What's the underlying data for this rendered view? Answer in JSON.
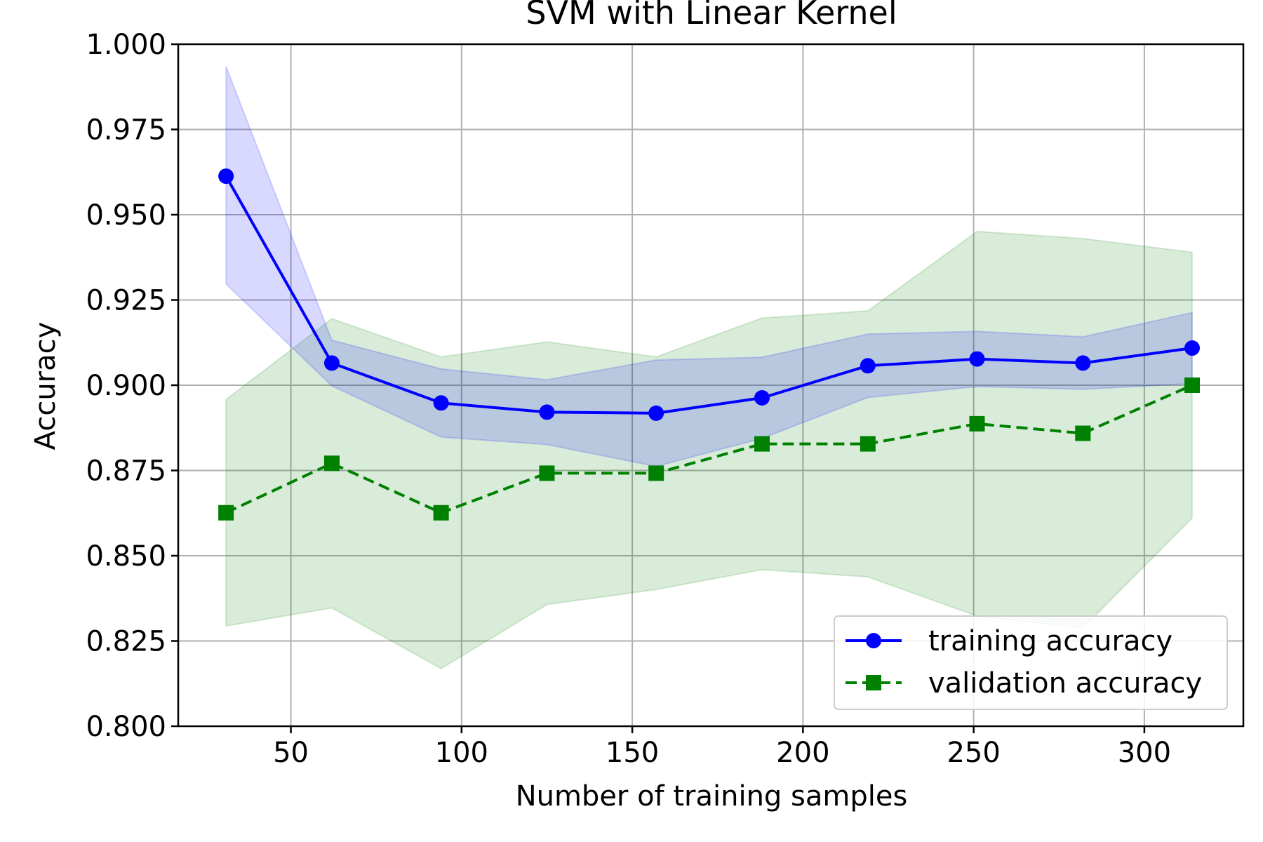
{
  "chart_data": {
    "type": "line",
    "title": "SVM with Linear Kernel",
    "xlabel": "Number of training samples",
    "ylabel": "Accuracy",
    "xlim": [
      17,
      329
    ],
    "ylim": [
      0.8,
      1.0
    ],
    "grid": true,
    "legend_position": "lower-right",
    "x": [
      31,
      62,
      94,
      125,
      157,
      188,
      219,
      251,
      282,
      314
    ],
    "x_ticks": [
      50,
      100,
      150,
      200,
      250,
      300
    ],
    "x_tick_labels": [
      "50",
      "100",
      "150",
      "200",
      "250",
      "300"
    ],
    "y_ticks": [
      0.8,
      0.825,
      0.85,
      0.875,
      0.9,
      0.925,
      0.95,
      0.975,
      1.0
    ],
    "y_tick_labels": [
      "0.800",
      "0.825",
      "0.850",
      "0.875",
      "0.900",
      "0.925",
      "0.950",
      "0.975",
      "1.000"
    ],
    "series": [
      {
        "name": "training accuracy",
        "color": "#0000ff",
        "fill_color": "#0000ff",
        "marker": "circle",
        "line_style": "solid",
        "values": [
          0.9613,
          0.9065,
          0.8948,
          0.8921,
          0.8918,
          0.8963,
          0.9057,
          0.9077,
          0.9065,
          0.9109
        ],
        "upper": [
          0.9935,
          0.9132,
          0.9048,
          0.9016,
          0.9074,
          0.9082,
          0.915,
          0.9158,
          0.9142,
          0.9213
        ],
        "lower": [
          0.9297,
          0.8998,
          0.8848,
          0.8826,
          0.8762,
          0.8844,
          0.8964,
          0.8996,
          0.8988,
          0.9005
        ]
      },
      {
        "name": "validation accuracy",
        "color": "#008000",
        "fill_color": "#008000",
        "marker": "square",
        "line_style": "dashed",
        "values": [
          0.8626,
          0.8771,
          0.8626,
          0.8742,
          0.8742,
          0.8828,
          0.8828,
          0.8887,
          0.8859,
          0.9
        ],
        "upper": [
          0.8958,
          0.9195,
          0.9083,
          0.9127,
          0.9083,
          0.9197,
          0.9218,
          0.9451,
          0.943,
          0.939
        ],
        "lower": [
          0.8294,
          0.8347,
          0.8169,
          0.8357,
          0.8401,
          0.8459,
          0.8438,
          0.8323,
          0.8288,
          0.861
        ]
      }
    ]
  }
}
